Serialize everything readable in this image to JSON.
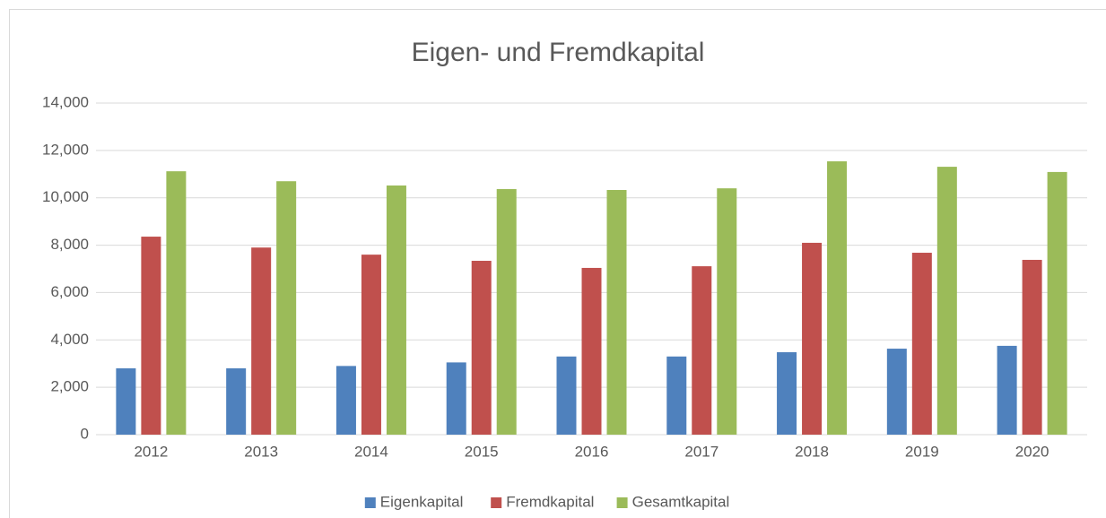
{
  "chart_data": {
    "type": "bar",
    "title": "Eigen- und Fremdkapital",
    "categories": [
      "2012",
      "2013",
      "2014",
      "2015",
      "2016",
      "2017",
      "2018",
      "2019",
      "2020"
    ],
    "series": [
      {
        "name": "Eigenkapital",
        "color": "#4f81bd",
        "values": [
          2800,
          2800,
          2900,
          3050,
          3300,
          3300,
          3480,
          3630,
          3750
        ]
      },
      {
        "name": "Fremdkapital",
        "color": "#c0504d",
        "values": [
          8360,
          7900,
          7600,
          7340,
          7040,
          7110,
          8100,
          7680,
          7380
        ]
      },
      {
        "name": "Gesamtkapital",
        "color": "#9bbb59",
        "values": [
          11120,
          10700,
          10520,
          10370,
          10330,
          10400,
          11540,
          11310,
          11090
        ]
      }
    ],
    "ylim": [
      0,
      14000
    ],
    "yticks": [
      0,
      {
        "value": 2000,
        "label": "2,000"
      },
      {
        "value": 4000,
        "label": "4,000"
      },
      {
        "value": 6000,
        "label": "6,000"
      },
      {
        "value": 8000,
        "label": "8,000"
      },
      {
        "value": 10000,
        "label": "10,000"
      },
      {
        "value": 12000,
        "label": "12,000"
      },
      {
        "value": 14000,
        "label": "14,000"
      }
    ],
    "grid": true,
    "legend": "bottom"
  }
}
